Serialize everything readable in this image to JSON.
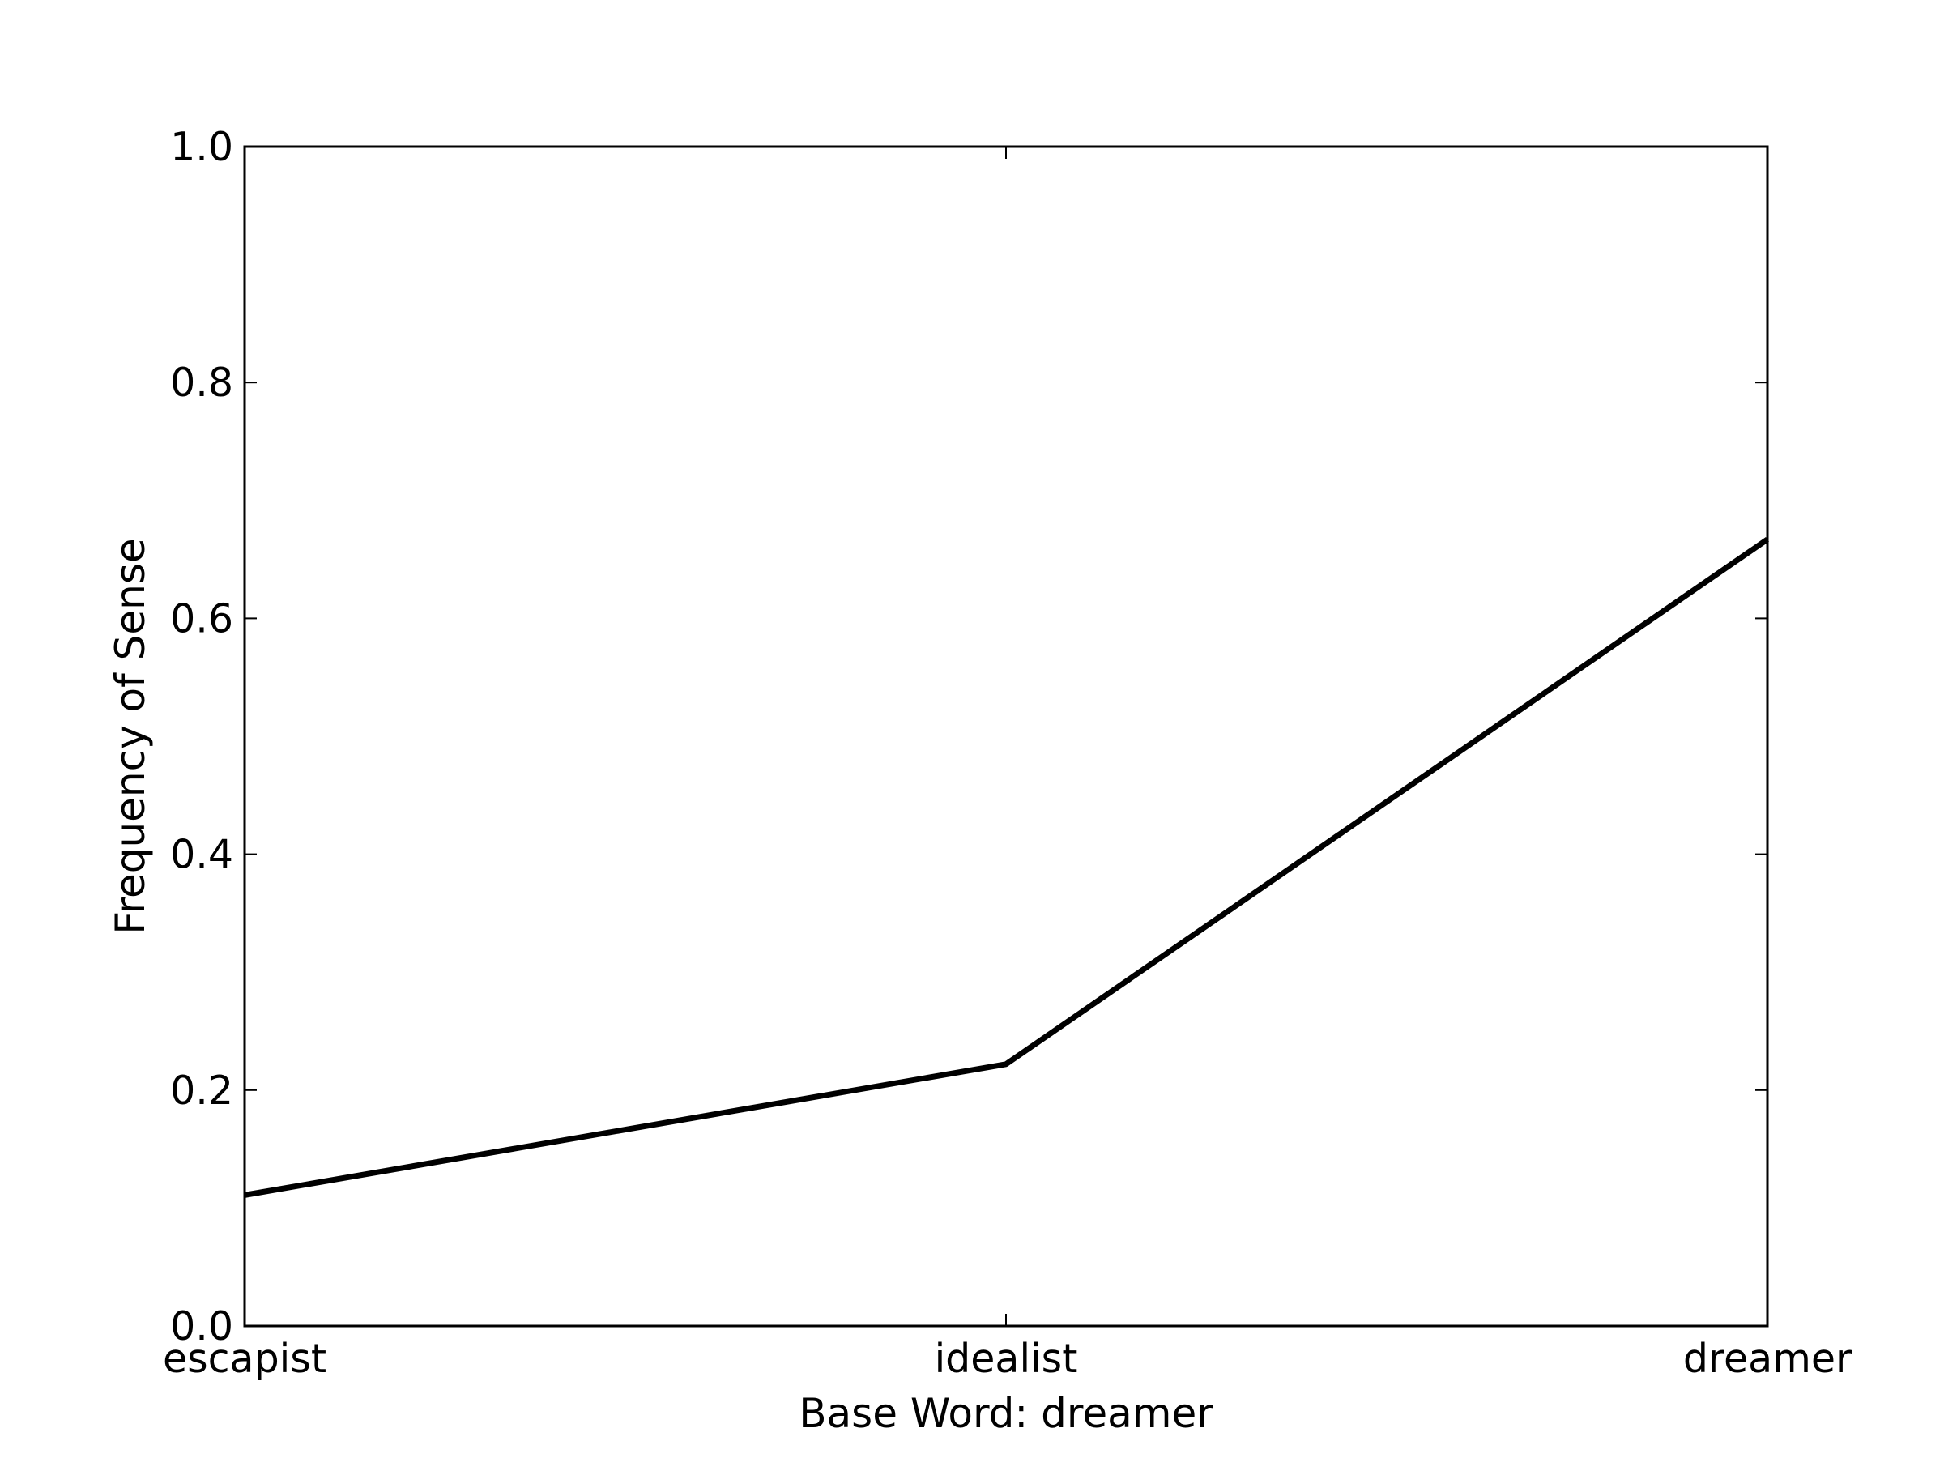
{
  "chart_data": {
    "type": "line",
    "title": "",
    "xlabel": "Base Word: dreamer",
    "ylabel": "Frequency of Sense",
    "categories": [
      "escapist",
      "idealist",
      "dreamer"
    ],
    "series": [
      {
        "values": [
          0.111,
          0.222,
          0.667
        ]
      }
    ],
    "ylim": [
      0.0,
      1.0
    ],
    "yticks": [
      "0.0",
      "0.2",
      "0.4",
      "0.6",
      "0.8",
      "1.0"
    ],
    "grid": false,
    "legend": "none",
    "line_color": "#000000"
  }
}
